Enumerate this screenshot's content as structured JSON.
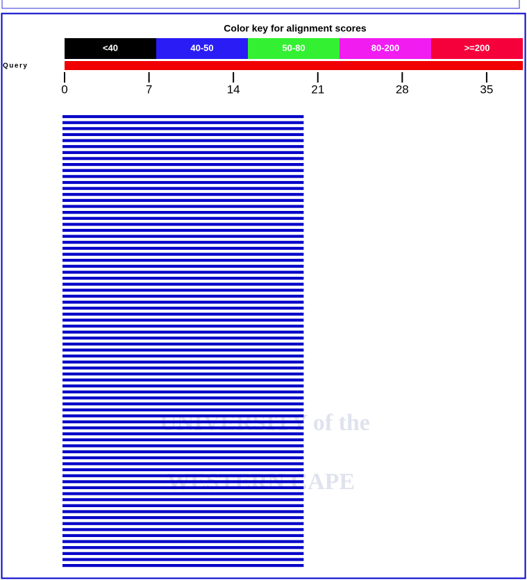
{
  "color_key": {
    "title": "Color key for alignment scores",
    "bins": [
      {
        "label": "<40",
        "color": "#000000"
      },
      {
        "label": "40-50",
        "color": "#2a1cf5"
      },
      {
        "label": "50-80",
        "color": "#33f033"
      },
      {
        "label": "80-200",
        "color": "#f01cf0"
      },
      {
        "label": ">=200",
        "color": "#f5003a"
      }
    ]
  },
  "query": {
    "label": "Query",
    "length": 38,
    "color": "#f00000",
    "ticks": [
      0,
      7,
      14,
      21,
      28,
      35
    ]
  },
  "hits_color": "#0000c8",
  "hits": [
    [
      0,
      20
    ],
    [
      0,
      20
    ],
    [
      0,
      20
    ],
    [
      0,
      20
    ],
    [
      0,
      20
    ],
    [
      0,
      20
    ],
    [
      0,
      20
    ],
    [
      0,
      20
    ],
    [
      0,
      20
    ],
    [
      0,
      20
    ],
    [
      0,
      20
    ],
    [
      0,
      20
    ],
    [
      0,
      20
    ],
    [
      0,
      20
    ],
    [
      0,
      20
    ],
    [
      0,
      20
    ],
    [
      0,
      20
    ],
    [
      0,
      20
    ],
    [
      0,
      20
    ],
    [
      0,
      20
    ],
    [
      0,
      20
    ],
    [
      0,
      20
    ],
    [
      0,
      20
    ],
    [
      0,
      20
    ],
    [
      0,
      20
    ],
    [
      0,
      20
    ],
    [
      0,
      20
    ],
    [
      0,
      20
    ],
    [
      0,
      20
    ],
    [
      0,
      20
    ],
    [
      0,
      20
    ],
    [
      0,
      20
    ],
    [
      0,
      20
    ],
    [
      0,
      20
    ],
    [
      0,
      20
    ],
    [
      0,
      20
    ],
    [
      0,
      20
    ],
    [
      0,
      20
    ],
    [
      0,
      20
    ],
    [
      0,
      20
    ],
    [
      0,
      20
    ],
    [
      0,
      20
    ],
    [
      0,
      20
    ],
    [
      0,
      20
    ],
    [
      0,
      20
    ],
    [
      0,
      20
    ],
    [
      0,
      20
    ],
    [
      0,
      20
    ],
    [
      0,
      20
    ],
    [
      0,
      20
    ],
    [
      0,
      20
    ],
    [
      0,
      20
    ],
    [
      0,
      20
    ],
    [
      0,
      20
    ],
    [
      0,
      20
    ],
    [
      0,
      20
    ],
    [
      0,
      20
    ],
    [
      0,
      20
    ],
    [
      0,
      20
    ],
    [
      0,
      20
    ],
    [
      0,
      20
    ],
    [
      0,
      20
    ],
    [
      0,
      20
    ],
    [
      0,
      20
    ],
    [
      0,
      20
    ],
    [
      0,
      20
    ],
    [
      0,
      20
    ],
    [
      0,
      20
    ],
    [
      0,
      20
    ],
    [
      0,
      20
    ],
    [
      0,
      20
    ],
    [
      0,
      20
    ],
    [
      0,
      20
    ],
    [
      0,
      20
    ],
    [
      0,
      20
    ],
    [
      0,
      20
    ]
  ],
  "watermark": {
    "line1": "UNIVERSITY of the",
    "line2": "WESTERN CAPE"
  }
}
